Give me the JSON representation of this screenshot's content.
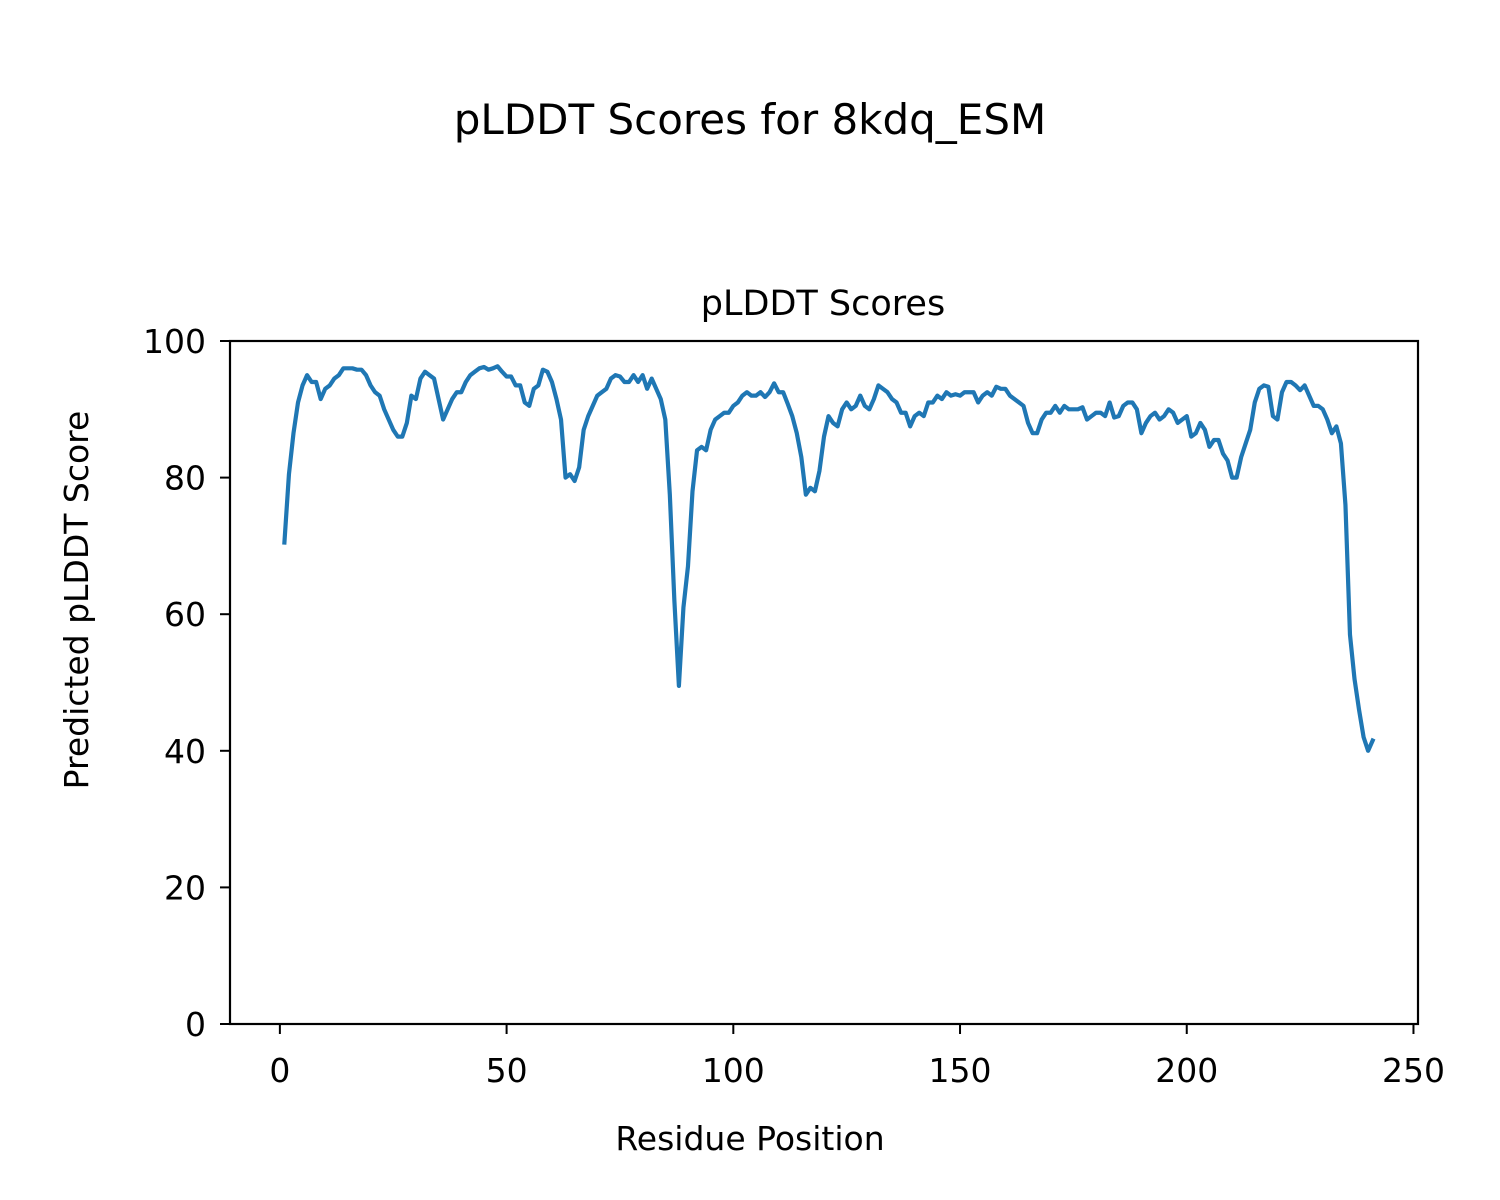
{
  "suptitle": "pLDDT Scores for 8kdq_ESM",
  "chart_data": {
    "type": "line",
    "title": "pLDDT Scores",
    "xlabel": "Residue Position",
    "ylabel": "Predicted pLDDT Score",
    "xlim": [
      -11,
      251
    ],
    "ylim": [
      0,
      100
    ],
    "xticks": [
      0,
      50,
      100,
      150,
      200,
      250
    ],
    "yticks": [
      0,
      20,
      40,
      60,
      80,
      100
    ],
    "grid": false,
    "color": "#1f77b4",
    "x_start": 1,
    "series": [
      {
        "values": [
          70.5,
          80.5,
          86.5,
          91.0,
          93.5,
          95.0,
          94.0,
          94.0,
          91.5,
          93.0,
          93.5,
          94.5,
          95.0,
          96.0,
          96.0,
          96.0,
          95.8,
          95.8,
          95.0,
          93.5,
          92.5,
          92.0,
          90.0,
          88.5,
          87.0,
          86.0,
          86.0,
          88.0,
          92.0,
          91.5,
          94.5,
          95.5,
          95.0,
          94.5,
          91.5,
          88.5,
          90.0,
          91.5,
          92.5,
          92.5,
          94.0,
          95.0,
          95.5,
          96.0,
          96.2,
          95.8,
          96.0,
          96.3,
          95.5,
          94.8,
          94.8,
          93.5,
          93.5,
          91.0,
          90.5,
          93.0,
          93.5,
          95.8,
          95.5,
          94.0,
          91.5,
          88.5,
          80.0,
          80.5,
          79.5,
          81.5,
          87.0,
          89.0,
          90.5,
          92.0,
          92.5,
          93.0,
          94.5,
          95.0,
          94.8,
          94.0,
          94.0,
          95.0,
          94.0,
          95.0,
          93.0,
          94.5,
          93.0,
          91.5,
          88.5,
          77.5,
          62.0,
          49.5,
          61.0,
          67.0,
          78.0,
          84.0,
          84.5,
          84.0,
          87.0,
          88.5,
          89.0,
          89.5,
          89.5,
          90.5,
          91.0,
          92.0,
          92.5,
          92.0,
          92.0,
          92.5,
          91.8,
          92.5,
          93.8,
          92.5,
          92.5,
          90.8,
          89.0,
          86.5,
          83.0,
          77.5,
          78.5,
          78.0,
          81.0,
          86.0,
          89.0,
          88.0,
          87.5,
          90.0,
          91.0,
          90.0,
          90.5,
          92.0,
          90.5,
          90.0,
          91.5,
          93.5,
          93.0,
          92.5,
          91.5,
          91.0,
          89.5,
          89.5,
          87.5,
          89.0,
          89.5,
          89.0,
          91.0,
          91.0,
          92.0,
          91.5,
          92.5,
          92.0,
          92.2,
          92.0,
          92.5,
          92.5,
          92.5,
          91.0,
          92.0,
          92.5,
          92.0,
          93.3,
          93.0,
          93.0,
          92.0,
          91.5,
          91.0,
          90.5,
          88.0,
          86.5,
          86.5,
          88.5,
          89.5,
          89.5,
          90.5,
          89.5,
          90.5,
          90.0,
          90.0,
          90.0,
          90.3,
          88.5,
          89.0,
          89.5,
          89.5,
          89.0,
          91.0,
          88.8,
          89.0,
          90.5,
          91.0,
          91.0,
          90.0,
          86.5,
          88.0,
          89.0,
          89.5,
          88.5,
          89.0,
          90.0,
          89.5,
          88.0,
          88.5,
          89.0,
          86.0,
          86.5,
          88.0,
          87.0,
          84.5,
          85.5,
          85.5,
          83.5,
          82.5,
          80.0,
          80.0,
          83.0,
          85.0,
          87.0,
          91.0,
          93.0,
          93.5,
          93.3,
          89.0,
          88.5,
          92.5,
          94.0,
          94.0,
          93.5,
          92.8,
          93.5,
          92.0,
          90.5,
          90.5,
          90.0,
          88.5,
          86.5,
          87.5,
          85.0,
          76.0,
          57.0,
          50.5,
          46.0,
          42.0,
          40.0,
          41.5
        ]
      }
    ]
  }
}
